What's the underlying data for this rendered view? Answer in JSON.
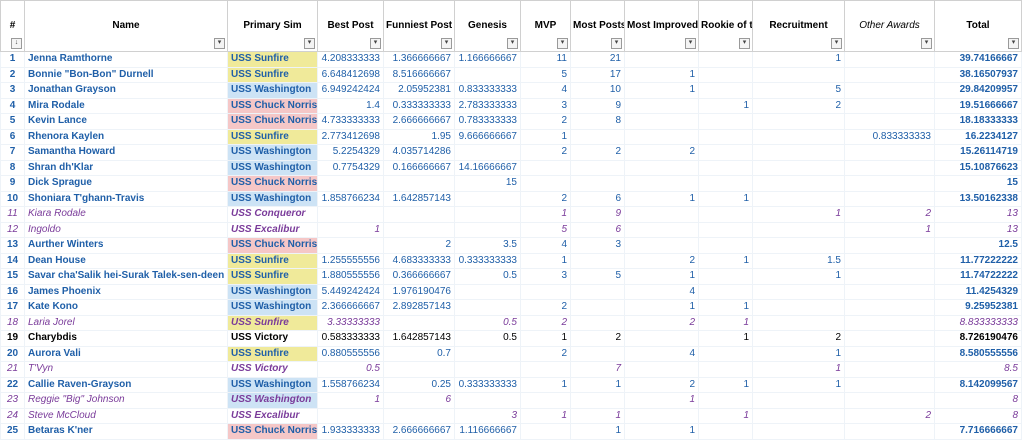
{
  "headers": {
    "idx": "#",
    "name": "Name",
    "sim": "Primary Sim",
    "best": "Best Post",
    "funny": "Funniest Post",
    "genesis": "Genesis",
    "mvp": "MVP",
    "most": "Most Posts",
    "improved": "Most Improved",
    "rookie": "Rookie of the Month",
    "recruit": "Recruitment",
    "other": "Other Awards",
    "total": "Total"
  },
  "filter_glyph": "▾",
  "sort_glyph": "↓",
  "rows": [
    {
      "idx": "1",
      "name": "Jenna Ramthorne",
      "sim": "USS Sunfire",
      "best": "4.208333333",
      "funny": "1.366666667",
      "genesis": "1.166666667",
      "mvp": "11",
      "most": "21",
      "improved": "",
      "rookie": "",
      "recruit": "1",
      "other": "",
      "total": "39.74166667"
    },
    {
      "idx": "2",
      "name": "Bonnie \"Bon-Bon\" Durnell",
      "sim": "USS Sunfire",
      "best": "6.648412698",
      "funny": "8.516666667",
      "genesis": "",
      "mvp": "5",
      "most": "17",
      "improved": "1",
      "rookie": "",
      "recruit": "",
      "other": "",
      "total": "38.16507937"
    },
    {
      "idx": "3",
      "name": "Jonathan Grayson",
      "sim": "USS Washington",
      "best": "6.949242424",
      "funny": "2.05952381",
      "genesis": "0.833333333",
      "mvp": "4",
      "most": "10",
      "improved": "1",
      "rookie": "",
      "recruit": "5",
      "other": "",
      "total": "29.84209957"
    },
    {
      "idx": "4",
      "name": "Mira Rodale",
      "sim": "USS Chuck Norris",
      "best": "1.4",
      "funny": "0.333333333",
      "genesis": "2.783333333",
      "mvp": "3",
      "most": "9",
      "improved": "",
      "rookie": "1",
      "recruit": "2",
      "other": "",
      "total": "19.51666667"
    },
    {
      "idx": "5",
      "name": "Kevin Lance",
      "sim": "USS Chuck Norris",
      "best": "4.733333333",
      "funny": "2.666666667",
      "genesis": "0.783333333",
      "mvp": "2",
      "most": "8",
      "improved": "",
      "rookie": "",
      "recruit": "",
      "other": "",
      "total": "18.18333333"
    },
    {
      "idx": "6",
      "name": "Rhenora Kaylen",
      "sim": "USS Sunfire",
      "best": "2.773412698",
      "funny": "1.95",
      "genesis": "9.666666667",
      "mvp": "1",
      "most": "",
      "improved": "",
      "rookie": "",
      "recruit": "",
      "other": "0.833333333",
      "total": "16.2234127"
    },
    {
      "idx": "7",
      "name": "Samantha Howard",
      "sim": "USS Washington",
      "best": "5.2254329",
      "funny": "4.035714286",
      "genesis": "",
      "mvp": "2",
      "most": "2",
      "improved": "2",
      "rookie": "",
      "recruit": "",
      "other": "",
      "total": "15.26114719"
    },
    {
      "idx": "8",
      "name": "Shran dh'Klar",
      "sim": "USS Washington",
      "best": "0.7754329",
      "funny": "0.166666667",
      "genesis": "14.16666667",
      "mvp": "",
      "most": "",
      "improved": "",
      "rookie": "",
      "recruit": "",
      "other": "",
      "total": "15.10876623"
    },
    {
      "idx": "9",
      "name": "Dick Sprague",
      "sim": "USS Chuck Norris",
      "best": "",
      "funny": "",
      "genesis": "15",
      "mvp": "",
      "most": "",
      "improved": "",
      "rookie": "",
      "recruit": "",
      "other": "",
      "total": "15"
    },
    {
      "idx": "10",
      "name": "Shoniara T'ghann-Travis",
      "sim": "USS Washington",
      "best": "1.858766234",
      "funny": "1.642857143",
      "genesis": "",
      "mvp": "2",
      "most": "6",
      "improved": "1",
      "rookie": "1",
      "recruit": "",
      "other": "",
      "total": "13.50162338"
    },
    {
      "idx": "11",
      "name": "Kiara Rodale",
      "sim": "USS Conqueror",
      "best": "",
      "funny": "",
      "genesis": "",
      "mvp": "1",
      "most": "9",
      "improved": "",
      "rookie": "",
      "recruit": "1",
      "other": "2",
      "total": "13"
    },
    {
      "idx": "12",
      "name": "Ingoldo",
      "sim": "USS Excalibur",
      "best": "1",
      "funny": "",
      "genesis": "",
      "mvp": "5",
      "most": "6",
      "improved": "",
      "rookie": "",
      "recruit": "",
      "other": "1",
      "total": "13"
    },
    {
      "idx": "13",
      "name": "Aurther Winters",
      "sim": "USS Chuck Norris",
      "best": "",
      "funny": "2",
      "genesis": "3.5",
      "mvp": "4",
      "most": "3",
      "improved": "",
      "rookie": "",
      "recruit": "",
      "other": "",
      "total": "12.5"
    },
    {
      "idx": "14",
      "name": "Dean House",
      "sim": "USS Sunfire",
      "best": "1.255555556",
      "funny": "4.683333333",
      "genesis": "0.333333333",
      "mvp": "1",
      "most": "",
      "improved": "2",
      "rookie": "1",
      "recruit": "1.5",
      "other": "",
      "total": "11.77222222"
    },
    {
      "idx": "15",
      "name": "Savar cha'Salik hei-Surak Talek-sen-deen",
      "sim": "USS Sunfire",
      "best": "1.880555556",
      "funny": "0.366666667",
      "genesis": "0.5",
      "mvp": "3",
      "most": "5",
      "improved": "1",
      "rookie": "",
      "recruit": "1",
      "other": "",
      "total": "11.74722222"
    },
    {
      "idx": "16",
      "name": "James Phoenix",
      "sim": "USS Washington",
      "best": "5.449242424",
      "funny": "1.976190476",
      "genesis": "",
      "mvp": "",
      "most": "",
      "improved": "4",
      "rookie": "",
      "recruit": "",
      "other": "",
      "total": "11.4254329"
    },
    {
      "idx": "17",
      "name": "Kate Kono",
      "sim": "USS Washington",
      "best": "2.366666667",
      "funny": "2.892857143",
      "genesis": "",
      "mvp": "2",
      "most": "",
      "improved": "1",
      "rookie": "1",
      "recruit": "",
      "other": "",
      "total": "9.25952381"
    },
    {
      "idx": "18",
      "name": "Laria Jorel",
      "sim": "USS Sunfire",
      "best": "3.33333333",
      "funny": "",
      "genesis": "0.5",
      "mvp": "2",
      "most": "",
      "improved": "2",
      "rookie": "1",
      "recruit": "",
      "other": "",
      "total": "8.833333333"
    },
    {
      "idx": "19",
      "name": "Charybdis",
      "sim": "USS Victory",
      "best": "0.583333333",
      "funny": "1.642857143",
      "genesis": "0.5",
      "mvp": "1",
      "most": "2",
      "improved": "",
      "rookie": "1",
      "recruit": "2",
      "other": "",
      "total": "8.726190476"
    },
    {
      "idx": "20",
      "name": "Aurora Vali",
      "sim": "USS Sunfire",
      "best": "0.880555556",
      "funny": "0.7",
      "genesis": "",
      "mvp": "2",
      "most": "",
      "improved": "4",
      "rookie": "",
      "recruit": "1",
      "other": "",
      "total": "8.580555556"
    },
    {
      "idx": "21",
      "name": "T'Vyn",
      "sim": "USS Victory",
      "best": "0.5",
      "funny": "",
      "genesis": "",
      "mvp": "",
      "most": "7",
      "improved": "",
      "rookie": "",
      "recruit": "1",
      "other": "",
      "total": "8.5"
    },
    {
      "idx": "22",
      "name": "Callie Raven-Grayson",
      "sim": "USS Washington",
      "best": "1.558766234",
      "funny": "0.25",
      "genesis": "0.333333333",
      "mvp": "1",
      "most": "1",
      "improved": "2",
      "rookie": "1",
      "recruit": "1",
      "other": "",
      "total": "8.142099567"
    },
    {
      "idx": "23",
      "name": "Reggie \"Big\" Johnson",
      "sim": "USS Washington",
      "best": "1",
      "funny": "6",
      "genesis": "",
      "mvp": "",
      "most": "",
      "improved": "1",
      "rookie": "",
      "recruit": "",
      "other": "",
      "total": "8"
    },
    {
      "idx": "24",
      "name": "Steve McCloud",
      "sim": "USS Excalibur",
      "best": "",
      "funny": "",
      "genesis": "3",
      "mvp": "1",
      "most": "1",
      "improved": "",
      "rookie": "1",
      "recruit": "",
      "other": "2",
      "total": "8"
    },
    {
      "idx": "25",
      "name": "Betaras K'ner",
      "sim": "USS Chuck Norris",
      "best": "1.933333333",
      "funny": "2.666666667",
      "genesis": "1.116666667",
      "mvp": "",
      "most": "1",
      "improved": "1",
      "rookie": "",
      "recruit": "",
      "other": "",
      "total": "7.716666667"
    }
  ],
  "row_styles": [
    "blue",
    "blue",
    "blue",
    "blue",
    "blue",
    "blue",
    "blue",
    "blue",
    "blue",
    "blue",
    "purple",
    "purple",
    "blue",
    "blue",
    "blue",
    "blue",
    "blue",
    "purple",
    "black",
    "blue",
    "purple",
    "blue",
    "purple",
    "purple",
    "blue"
  ],
  "sim_colors": {
    "USS Sunfire": "#f0ea9a",
    "USS Washington": "#cde3f5",
    "USS Chuck Norris": "#f5c7c7"
  }
}
